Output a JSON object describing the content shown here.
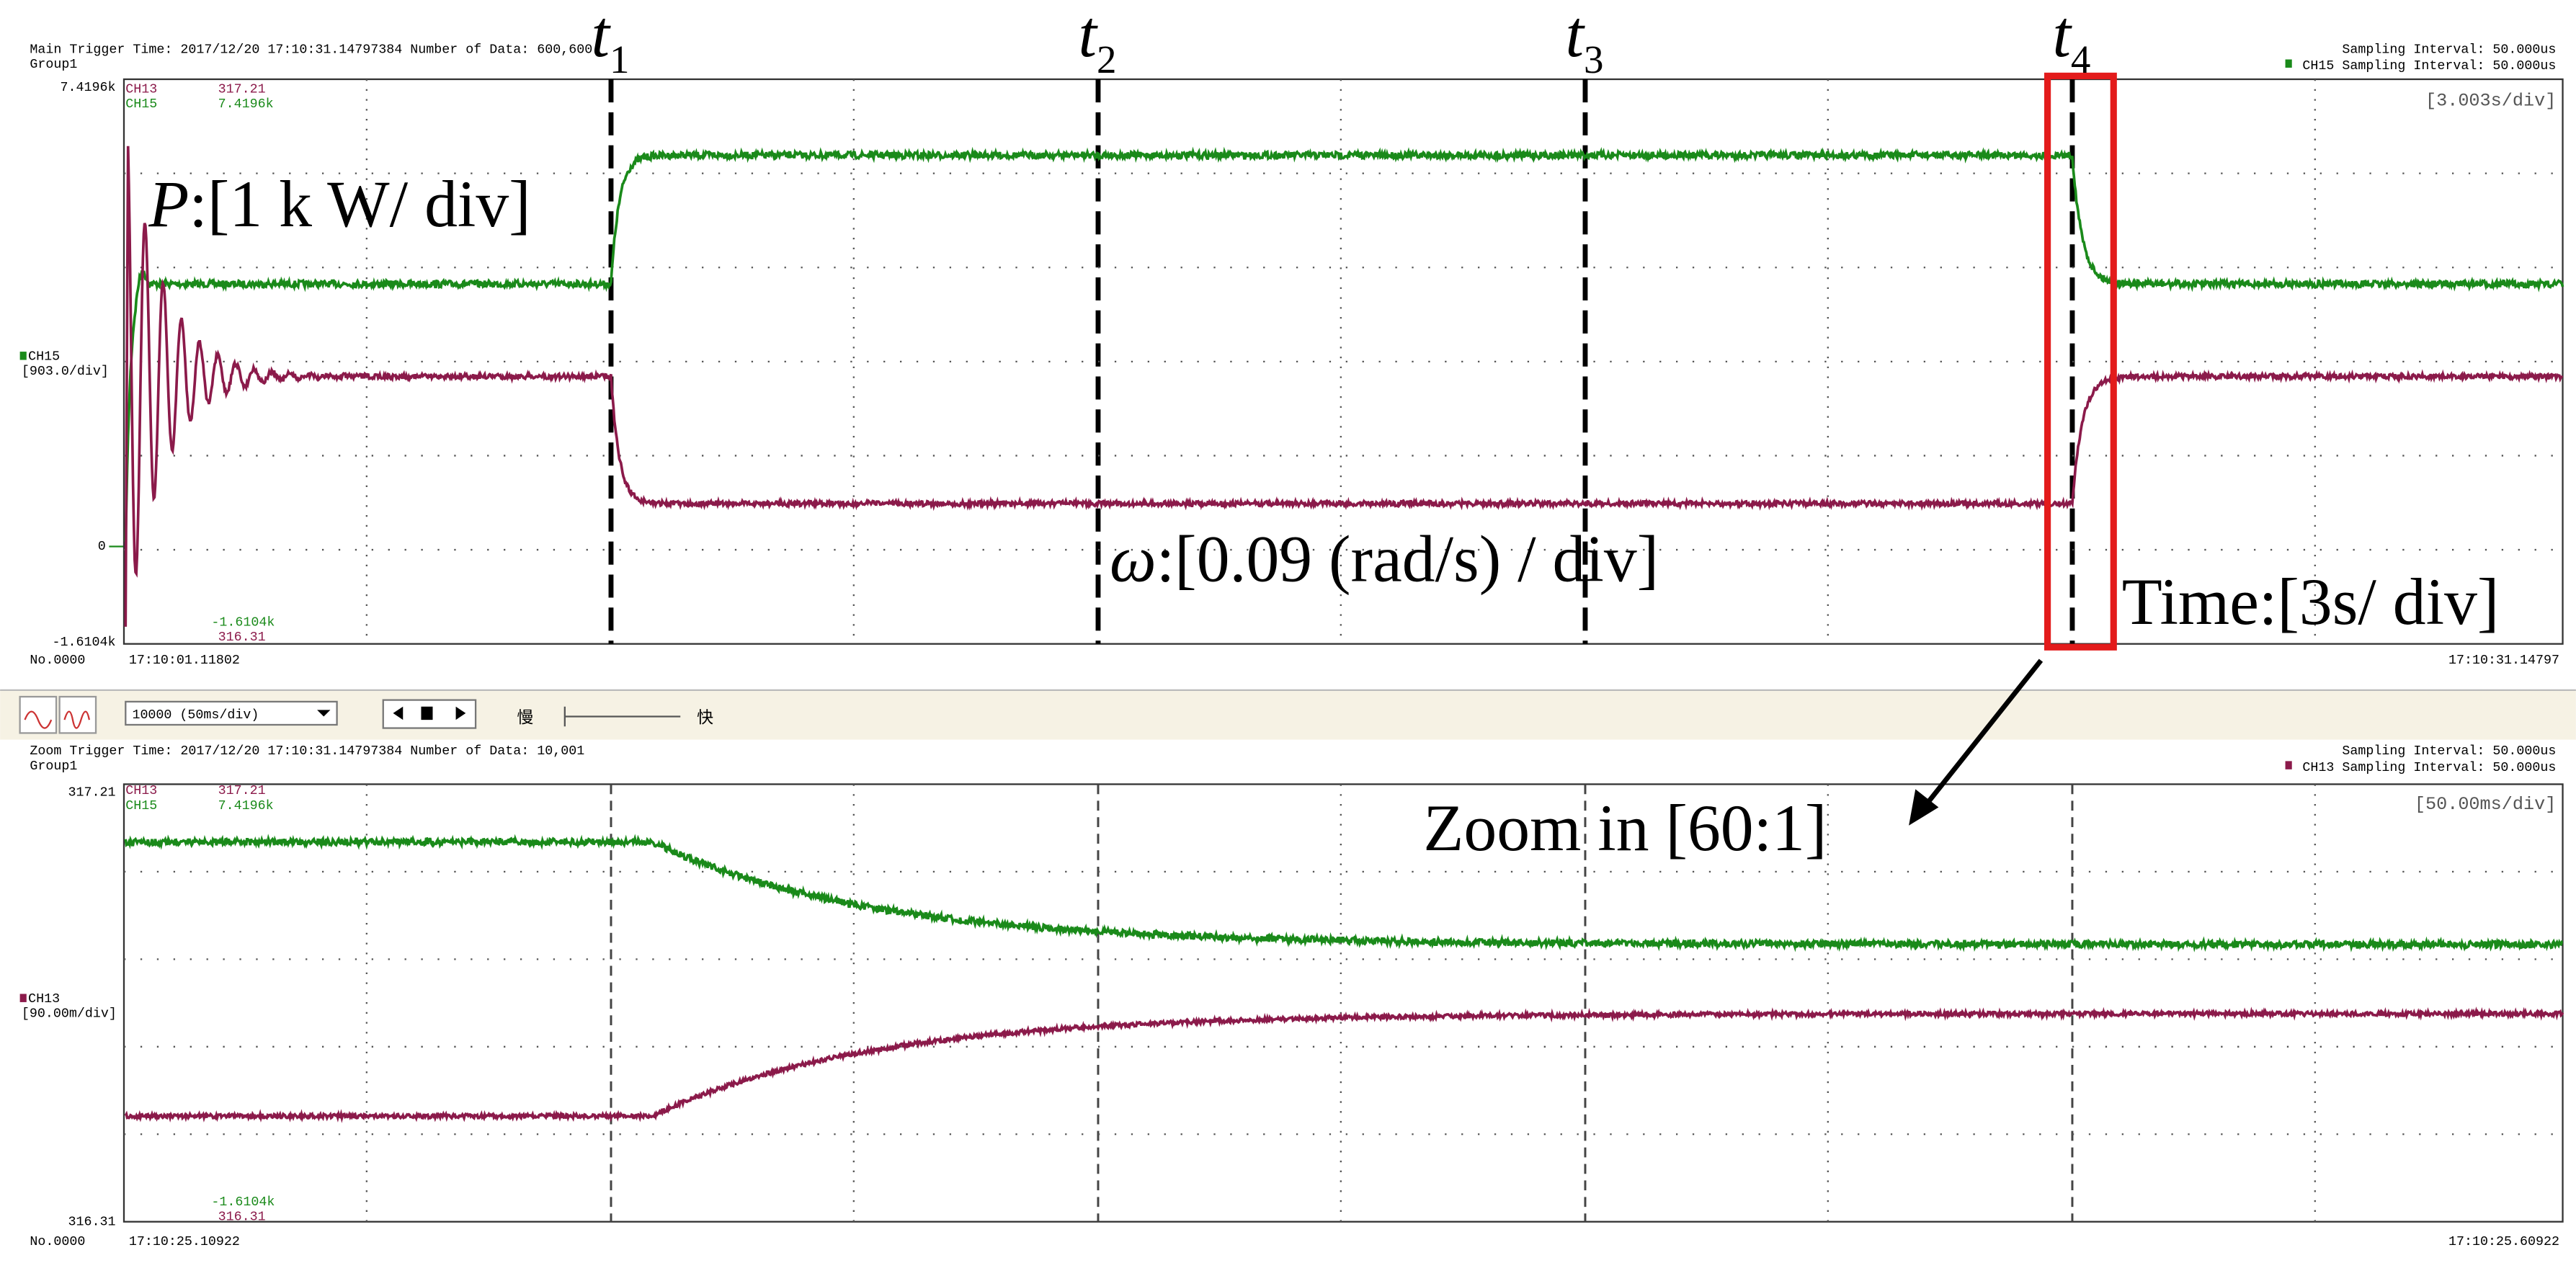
{
  "main": {
    "header": "Main Trigger Time: 2017/12/20 17:10:31.14797384  Number of Data: 600,600",
    "group": "Group1",
    "sampling": "Sampling Interval:  50.000us",
    "ch_sampling": "CH15 Sampling Interval:  50.000us",
    "y_top": "7.4196k",
    "legend": [
      {
        "ch": "CH13",
        "top": "317.21",
        "bottom": "316.31"
      },
      {
        "ch": "CH15",
        "top": "7.4196k",
        "bottom": "-1.6104k"
      }
    ],
    "div": "[3.003s/div]",
    "channel": "CH15",
    "channel_div": "[903.0/div]",
    "zero": "0",
    "y_bottom": "-1.6104k",
    "record": "No.0000",
    "t_start": "17:10:01.11802",
    "t_end": "17:10:31.14797"
  },
  "toolbar": {
    "zoom_select": "10000  (50ms/div)",
    "slow": "慢",
    "fast": "快"
  },
  "zoom": {
    "header": "Zoom Trigger Time: 2017/12/20 17:10:31.14797384  Number of Data: 10,001",
    "group": "Group1",
    "sampling": "Sampling Interval:  50.000us",
    "ch_sampling": "CH13 Sampling Interval:  50.000us",
    "y_top": "317.21",
    "legend": [
      {
        "ch": "CH13",
        "top": "317.21",
        "bottom": "316.31"
      },
      {
        "ch": "CH15",
        "top": "7.4196k",
        "bottom": "-1.6104k"
      }
    ],
    "div": "[50.00ms/div]",
    "channel": "CH13",
    "channel_div": "[90.00m/div]",
    "y_bottom": "316.31",
    "record": "No.0000",
    "t_start": "17:10:25.10922",
    "t_end": "17:10:25.60922"
  },
  "markers": [
    {
      "letter": "t",
      "sub": "1"
    },
    {
      "letter": "t",
      "sub": "2"
    },
    {
      "letter": "t",
      "sub": "3"
    },
    {
      "letter": "t",
      "sub": "4"
    }
  ],
  "annotations": {
    "power": {
      "symbol": "P",
      "text": ":[1 k W/ div]"
    },
    "speed": {
      "symbol": "ω",
      "text": ":[0.09 (rad/s) / div]"
    },
    "time": "Time:[3s/ div]",
    "zoom": "Zoom in [60:1]"
  }
}
